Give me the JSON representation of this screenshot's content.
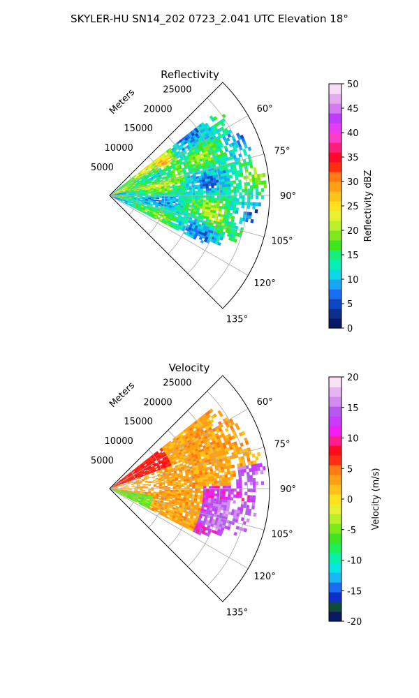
{
  "figure_title": "SKYLER-HU  SN14_202  0723_2.041 UTC Elevation 18°",
  "chart_data": [
    {
      "type": "heatmap",
      "title": "Reflectivity",
      "projection": "polar-sector",
      "azimuth_range_deg": [
        45,
        135
      ],
      "range_max_m": 29000,
      "radial_axis_label": "Meters",
      "radial_ticks": [
        "5000",
        "10000",
        "15000",
        "20000",
        "25000"
      ],
      "angular_ticks": [
        "60°",
        "75°",
        "90°",
        "105°",
        "120°",
        "135°"
      ],
      "grid": true,
      "colorbar": {
        "label": "Reflectivity dBZ",
        "range": [
          0,
          50
        ],
        "ticks": [
          "0",
          "5",
          "10",
          "15",
          "20",
          "25",
          "30",
          "35",
          "40",
          "45",
          "50"
        ],
        "colors": [
          "#071a63",
          "#0b2f8a",
          "#0d47c4",
          "#1a6df0",
          "#19a7f5",
          "#0ad6e6",
          "#06f0b4",
          "#14f07a",
          "#3ee61e",
          "#7ee81a",
          "#b8f02a",
          "#e8f032",
          "#ffe21e",
          "#ffc21a",
          "#ffa014",
          "#ff7a10",
          "#ff3010",
          "#ff0a2a",
          "#ff1e7a",
          "#ff3cc8",
          "#e63cf5",
          "#b93cff",
          "#d27af0",
          "#e6aaf0",
          "#f7dcf5"
        ]
      },
      "echo_summary": "Widespread echo 0–28 km between ~52° and ~117° azimuth; mostly 15–25 dBZ, local maximum ~35 dBZ near 11 km at ~59°"
    },
    {
      "type": "heatmap",
      "title": "Velocity",
      "projection": "polar-sector",
      "azimuth_range_deg": [
        45,
        135
      ],
      "range_max_m": 29000,
      "radial_axis_label": "Meters",
      "radial_ticks": [
        "5000",
        "10000",
        "15000",
        "20000",
        "25000"
      ],
      "angular_ticks": [
        "60°",
        "75°",
        "90°",
        "105°",
        "120°",
        "135°"
      ],
      "grid": true,
      "colorbar": {
        "label": "Velocity (m/s)",
        "range": [
          -20,
          20
        ],
        "ticks": [
          "-20",
          "-15",
          "-10",
          "-5",
          "0",
          "5",
          "10",
          "15",
          "20"
        ],
        "colors": [
          "#071a63",
          "#0f4a3a",
          "#0d2ec8",
          "#1a6df0",
          "#19b7f5",
          "#06e6e6",
          "#06f0a8",
          "#1af05a",
          "#3ee61e",
          "#7ee81a",
          "#b8f02a",
          "#e8f032",
          "#ffe21e",
          "#ffc21a",
          "#ffa014",
          "#ff7a10",
          "#ff3010",
          "#ff0a1e",
          "#ff1e8c",
          "#f01ef5",
          "#c83cff",
          "#b45af0",
          "#d28cf0",
          "#e6b4f0",
          "#f7e1f5"
        ]
      },
      "echo_summary": "Mostly 0 to +10 m/s (yellow–orange) west of 90°, +10 to +15 m/s (red–magenta) east of 90° at 18–28 km; small -5 m/s area near the radar"
    }
  ]
}
